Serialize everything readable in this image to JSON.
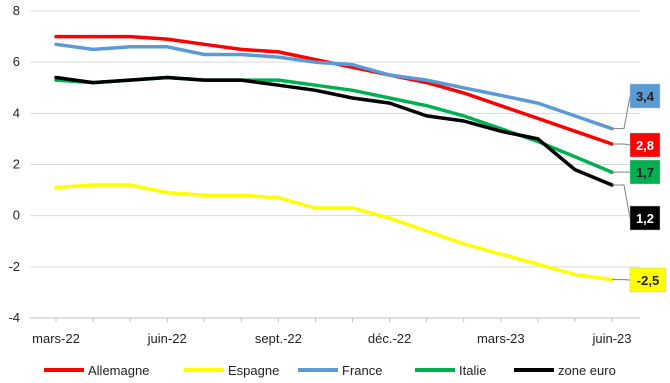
{
  "chart_data": {
    "type": "line",
    "title": "",
    "xlabel": "",
    "ylabel": "",
    "ylim": [
      -4,
      8
    ],
    "y_ticks": [
      "-4",
      "-2",
      "0",
      "2",
      "4",
      "6",
      "8"
    ],
    "x_tick_labels": [
      "mars-22",
      "juin-22",
      "sept.-22",
      "déc.-22",
      "mars-23",
      "juin-23"
    ],
    "x": [
      "mars-22",
      "avr.-22",
      "mai-22",
      "juin-22",
      "juil.-22",
      "août-22",
      "sept.-22",
      "oct.-22",
      "nov.-22",
      "déc.-22",
      "janv.-23",
      "févr.-23",
      "mars-23",
      "avr.-23",
      "mai-23",
      "juin-23"
    ],
    "grid": "horizontal",
    "legend_position": "bottom",
    "series": [
      {
        "name": "Allemagne",
        "color": "#ff0000",
        "end_label": "2,8",
        "values": [
          7.0,
          7.0,
          7.0,
          6.9,
          6.7,
          6.5,
          6.4,
          6.1,
          5.8,
          5.5,
          5.2,
          4.8,
          4.3,
          3.8,
          3.3,
          2.8
        ]
      },
      {
        "name": "Espagne",
        "color": "#ffff00",
        "end_label": "-2,5",
        "values": [
          1.1,
          1.2,
          1.2,
          0.9,
          0.8,
          0.8,
          0.7,
          0.3,
          0.3,
          -0.1,
          -0.6,
          -1.1,
          -1.5,
          -1.9,
          -2.3,
          -2.5
        ]
      },
      {
        "name": "France",
        "color": "#5b9bd5",
        "end_label": "3,4",
        "values": [
          6.7,
          6.5,
          6.6,
          6.6,
          6.3,
          6.3,
          6.2,
          6.0,
          5.9,
          5.5,
          5.3,
          5.0,
          4.7,
          4.4,
          3.9,
          3.4
        ]
      },
      {
        "name": "Italie",
        "color": "#00b050",
        "end_label": "1,7",
        "values": [
          5.3,
          5.2,
          5.3,
          5.4,
          5.3,
          5.3,
          5.3,
          5.1,
          4.9,
          4.6,
          4.3,
          3.9,
          3.4,
          2.9,
          2.3,
          1.7
        ]
      },
      {
        "name": "zone euro",
        "color": "#000000",
        "end_label": "1,2",
        "values": [
          5.4,
          5.2,
          5.3,
          5.4,
          5.3,
          5.3,
          5.1,
          4.9,
          4.6,
          4.4,
          3.9,
          3.7,
          3.3,
          3.0,
          1.8,
          1.2
        ]
      }
    ]
  }
}
